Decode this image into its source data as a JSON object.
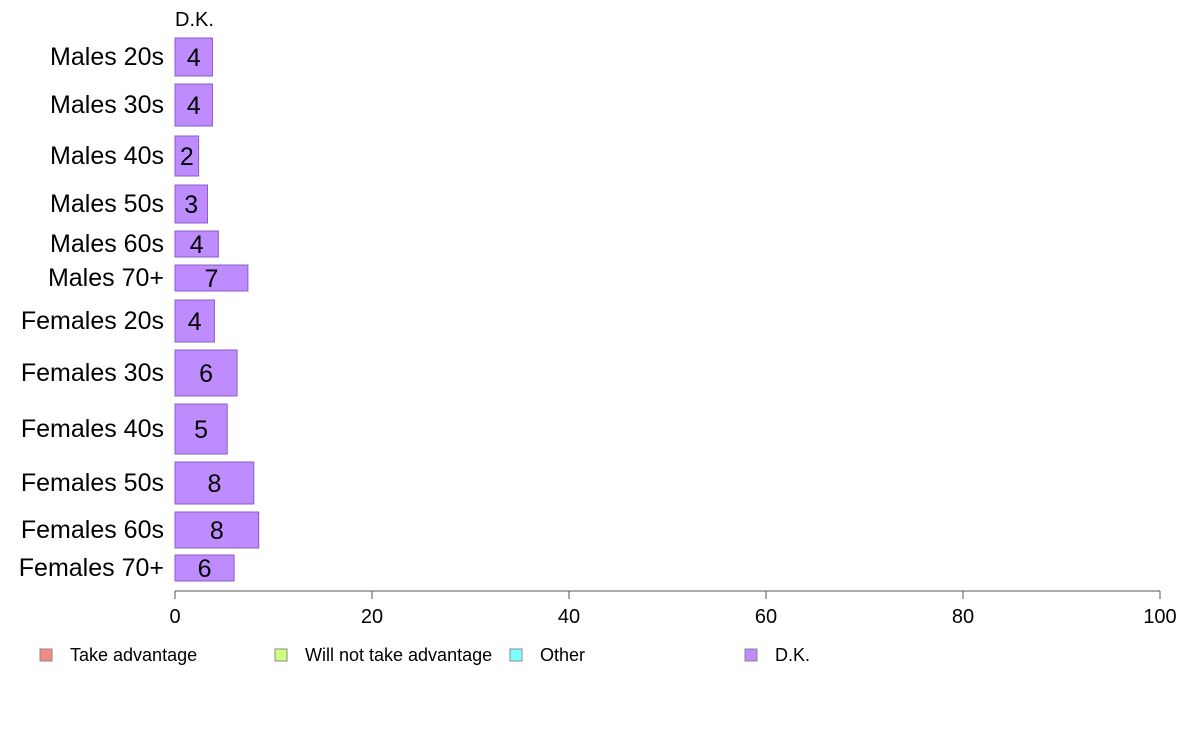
{
  "chart_data": {
    "type": "bar",
    "orientation": "horizontal",
    "stacked": true,
    "series_title": "D.K.",
    "categories": [
      "Males 20s",
      "Males 30s",
      "Males 40s",
      "Males 50s",
      "Males 60s",
      "Males 70+",
      "Females 20s",
      "Females 30s",
      "Females 40s",
      "Females 50s",
      "Females 60s",
      "Females 70+"
    ],
    "series": [
      {
        "name": "D.K.",
        "color": "#bf8cff",
        "values": [
          3.8,
          3.8,
          2.4,
          3.3,
          4.4,
          7.4,
          4.0,
          6.3,
          5.3,
          8.0,
          8.5,
          6.0
        ],
        "labels": [
          "4",
          "4",
          "2",
          "3",
          "4",
          "7",
          "4",
          "6",
          "5",
          "8",
          "8",
          "6"
        ]
      }
    ],
    "xlim": [
      0,
      100
    ],
    "xticks": [
      "0",
      "20",
      "40",
      "60",
      "80",
      "100"
    ],
    "grid": false,
    "legend": {
      "position": "bottom",
      "entries": [
        {
          "label": "Take advantage",
          "color": "#f28b82"
        },
        {
          "label": "Will not take advantage",
          "color": "#ccff80"
        },
        {
          "label": "Other",
          "color": "#80ffff"
        },
        {
          "label": "D.K.",
          "color": "#bf8cff"
        }
      ]
    }
  }
}
